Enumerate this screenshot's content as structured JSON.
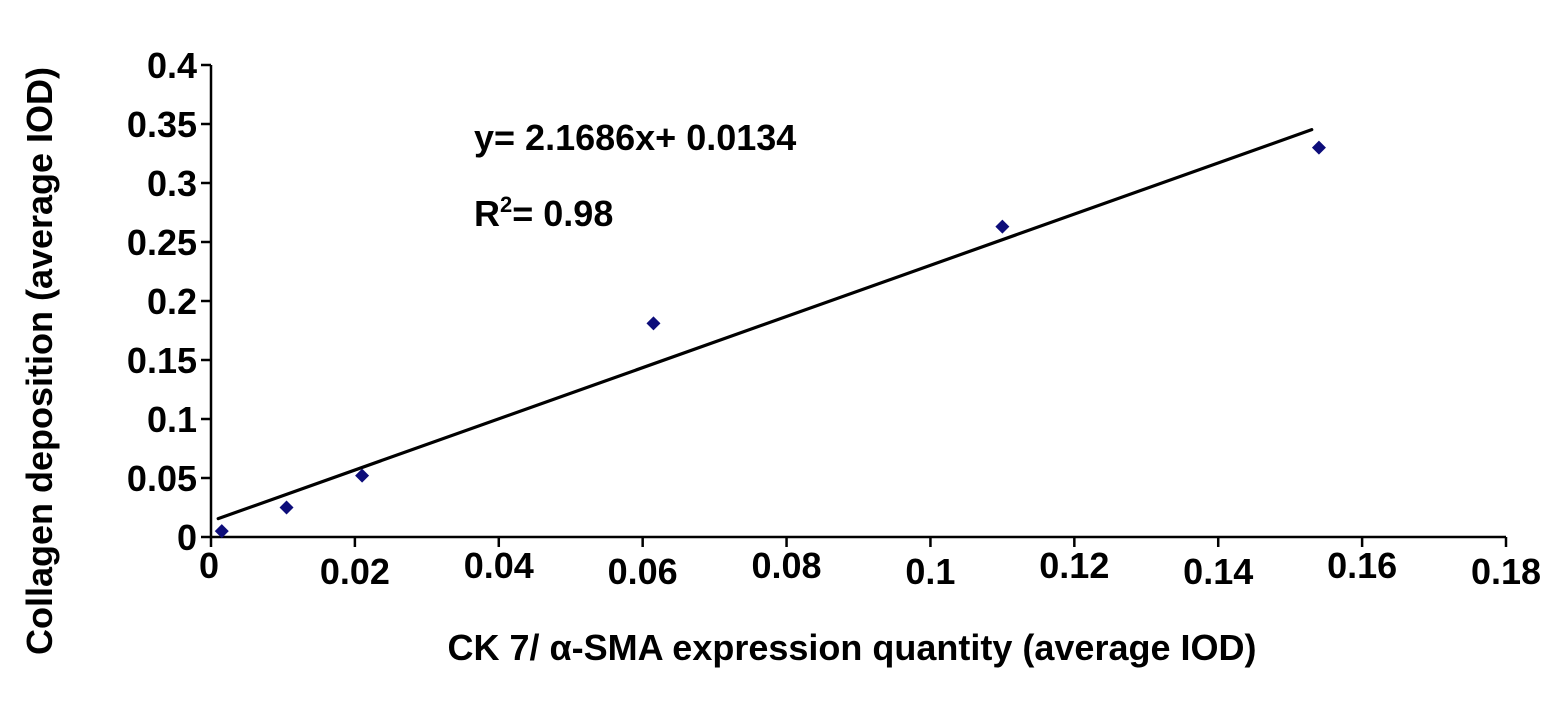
{
  "chart_data": {
    "type": "scatter",
    "title": "",
    "xlabel": "CK 7/ α-SMA expression quantity (average IOD)",
    "ylabel": "Collagen deposition (average IOD)",
    "xlim": [
      0,
      0.18
    ],
    "ylim": [
      0,
      0.4
    ],
    "x_ticks": [
      "0",
      "0.02",
      "0.04",
      "0.06",
      "0.08",
      "0.1",
      "0.12",
      "0.14",
      "0.16",
      "0.18"
    ],
    "y_ticks": [
      "0",
      "0.05",
      "0.1",
      "0.15",
      "0.2",
      "0.25",
      "0.3",
      "0.35",
      "0.4"
    ],
    "grid": false,
    "points": [
      {
        "x": 0.0015,
        "y": 0.005
      },
      {
        "x": 0.0105,
        "y": 0.025
      },
      {
        "x": 0.021,
        "y": 0.052
      },
      {
        "x": 0.0615,
        "y": 0.181
      },
      {
        "x": 0.11,
        "y": 0.263
      },
      {
        "x": 0.154,
        "y": 0.33
      }
    ],
    "trendline": {
      "slope": 2.1686,
      "intercept": 0.0134,
      "x_start": 0.001,
      "x_end": 0.153
    },
    "annotations": {
      "equation": "y= 2.1686x+ 0.0134",
      "r2_prefix": "R",
      "r2_sup": "2",
      "r2_value": "= 0.98"
    },
    "colors": {
      "marker": "#0d0d7a",
      "line": "#000000",
      "axis": "#000000"
    }
  }
}
